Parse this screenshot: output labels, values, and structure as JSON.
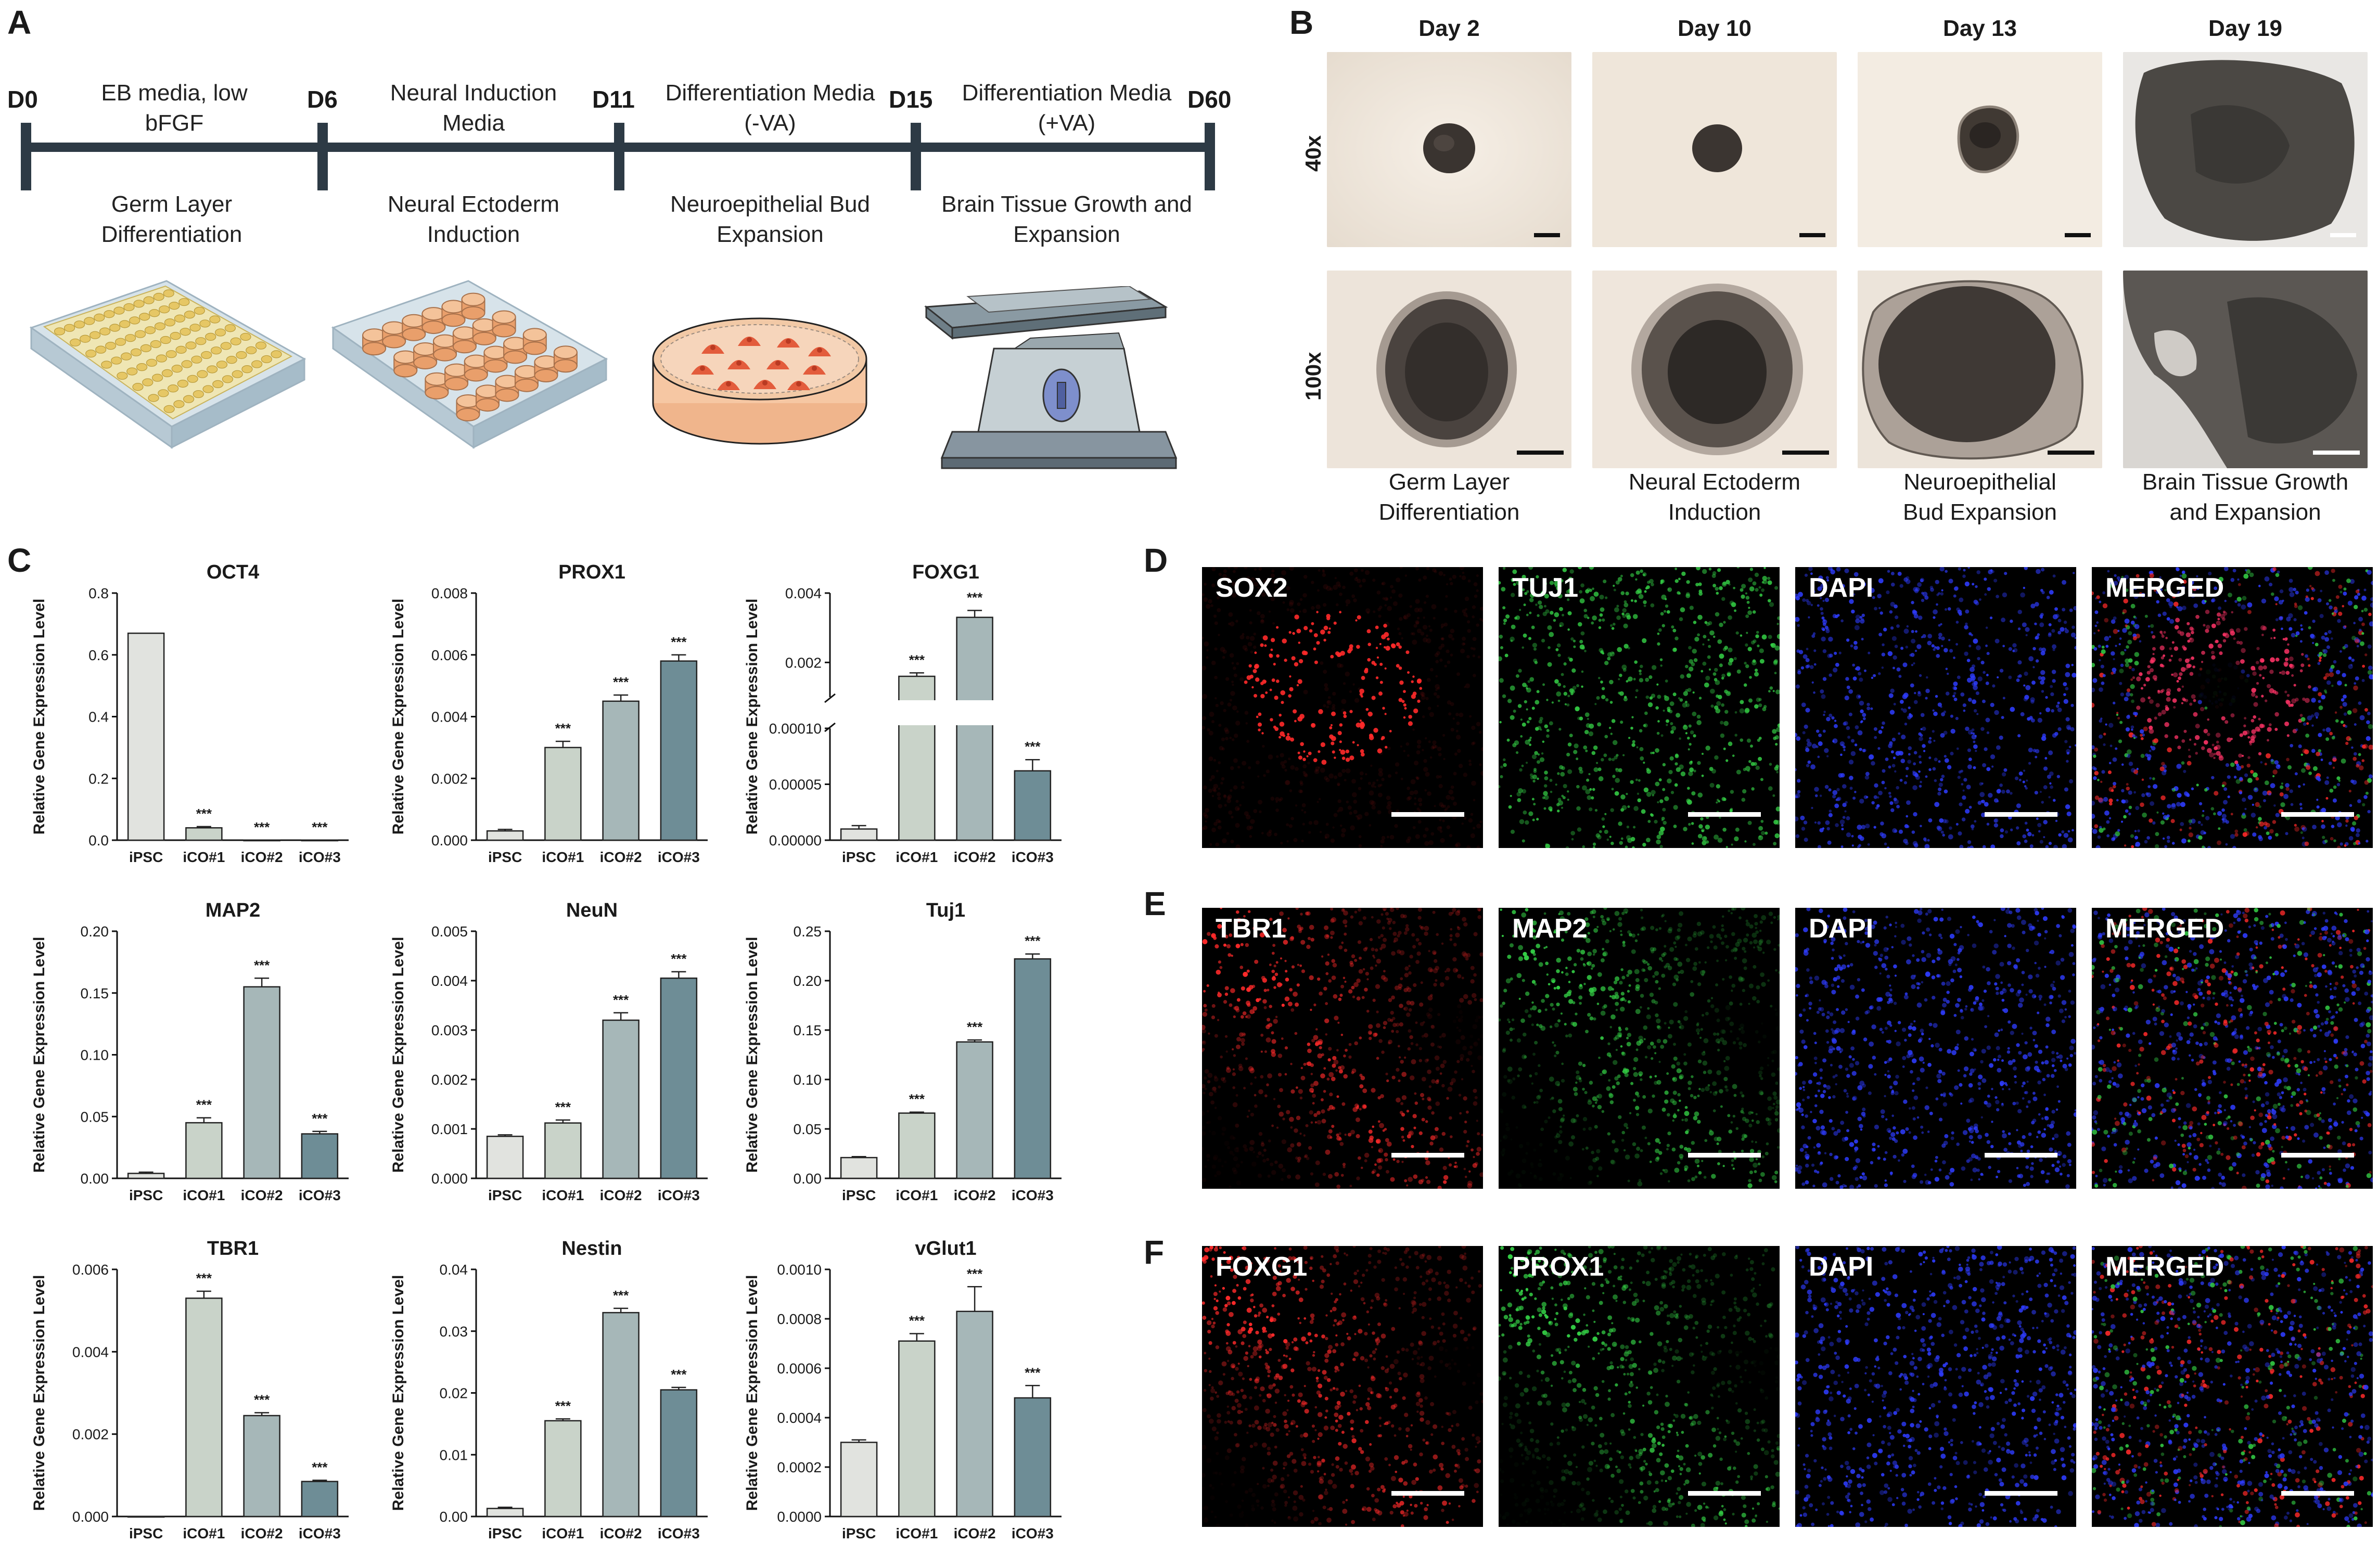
{
  "panels": {
    "a": "A",
    "b": "B",
    "c": "C",
    "d": "D",
    "e": "E",
    "f": "F"
  },
  "timeline": {
    "days": [
      "D0",
      "D6",
      "D11",
      "D15",
      "D60"
    ],
    "media": [
      "EB media, low\nbFGF",
      "Neural Induction\nMedia",
      "Differentiation Media\n(-VA)",
      "Differentiation Media\n(+VA)"
    ],
    "stages": [
      "Germ Layer\nDifferentiation",
      "Neural Ectoderm\nInduction",
      "Neuroepithelial Bud\nExpansion",
      "Brain Tissue Growth and\nExpansion"
    ]
  },
  "microscopy": {
    "days": [
      "Day 2",
      "Day 10",
      "Day 13",
      "Day 19"
    ],
    "magnifications": [
      "40x",
      "100x"
    ],
    "captions": [
      "Germ Layer\nDifferentiation",
      "Neural Ectoderm\nInduction",
      "Neuroepithelial\nBud Expansion",
      "Brain Tissue Growth\nand Expansion"
    ]
  },
  "chart_ylabel": "Relative Gene Expression Level",
  "chart_data": [
    {
      "type": "bar",
      "title": "OCT4",
      "categories": [
        "iPSC",
        "iCO#1",
        "iCO#2",
        "iCO#3"
      ],
      "values": [
        0.67,
        0.04,
        0.0,
        0.0
      ],
      "errors": [
        0,
        0.004,
        0,
        0
      ],
      "sig": [
        "",
        "***",
        "***",
        "***"
      ],
      "ylim": [
        0,
        0.8
      ],
      "yticks": [
        "0.0",
        "0.2",
        "0.4",
        "0.6",
        "0.8"
      ],
      "ylabel": "Relative Gene Expression Level"
    },
    {
      "type": "bar",
      "title": "PROX1",
      "categories": [
        "iPSC",
        "iCO#1",
        "iCO#2",
        "iCO#3"
      ],
      "values": [
        0.0003,
        0.003,
        0.0045,
        0.0058
      ],
      "errors": [
        5e-05,
        0.0002,
        0.0002,
        0.0002
      ],
      "sig": [
        "",
        "***",
        "***",
        "***"
      ],
      "ylim": [
        0,
        0.008
      ],
      "yticks": [
        "0.000",
        "0.002",
        "0.004",
        "0.006",
        "0.008"
      ],
      "ylabel": "Relative Gene Expression Level"
    },
    {
      "type": "bar",
      "title": "FOXG1",
      "categories": [
        "iPSC",
        "iCO#1",
        "iCO#2",
        "iCO#3"
      ],
      "values": [
        1e-05,
        0.0016,
        0.0033,
        6.2e-05
      ],
      "errors": [
        3e-06,
        0.0001,
        0.0002,
        1e-05
      ],
      "sig": [
        "",
        "***",
        "***",
        "***"
      ],
      "broken_axis": true,
      "ylim_low": [
        0,
        0.0001
      ],
      "ylim_high": [
        0.001,
        0.004
      ],
      "yticks_low": [
        "0.00000",
        "0.00005",
        "0.00010"
      ],
      "yticks_high": [
        "0.002",
        "0.004"
      ],
      "ylabel": "Relative Gene Expression Level"
    },
    {
      "type": "bar",
      "title": "MAP2",
      "categories": [
        "iPSC",
        "iCO#1",
        "iCO#2",
        "iCO#3"
      ],
      "values": [
        0.004,
        0.045,
        0.155,
        0.036
      ],
      "errors": [
        0.001,
        0.004,
        0.007,
        0.002
      ],
      "sig": [
        "",
        "***",
        "***",
        "***"
      ],
      "ylim": [
        0,
        0.2
      ],
      "yticks": [
        "0.00",
        "0.05",
        "0.10",
        "0.15",
        "0.20"
      ],
      "ylabel": "Relative Gene Expression Level"
    },
    {
      "type": "bar",
      "title": "NeuN",
      "categories": [
        "iPSC",
        "iCO#1",
        "iCO#2",
        "iCO#3"
      ],
      "values": [
        0.00085,
        0.00112,
        0.0032,
        0.00405
      ],
      "errors": [
        3e-05,
        6e-05,
        0.00015,
        0.00013
      ],
      "sig": [
        "",
        "***",
        "***",
        "***"
      ],
      "ylim": [
        0,
        0.005
      ],
      "yticks": [
        "0.000",
        "0.001",
        "0.002",
        "0.003",
        "0.004",
        "0.005"
      ],
      "ylabel": "Relative Gene Expression Level"
    },
    {
      "type": "bar",
      "title": "Tuj1",
      "categories": [
        "iPSC",
        "iCO#1",
        "iCO#2",
        "iCO#3"
      ],
      "values": [
        0.021,
        0.066,
        0.138,
        0.222
      ],
      "errors": [
        0.001,
        0.001,
        0.002,
        0.005
      ],
      "sig": [
        "",
        "***",
        "***",
        "***"
      ],
      "ylim": [
        0,
        0.25
      ],
      "yticks": [
        "0.00",
        "0.05",
        "0.10",
        "0.15",
        "0.20",
        "0.25"
      ],
      "ylabel": "Relative Gene Expression Level"
    },
    {
      "type": "bar",
      "title": "TBR1",
      "categories": [
        "iPSC",
        "iCO#1",
        "iCO#2",
        "iCO#3"
      ],
      "values": [
        0.0,
        0.0053,
        0.00245,
        0.00085
      ],
      "errors": [
        0,
        0.00017,
        7e-05,
        3e-05
      ],
      "sig": [
        "",
        "***",
        "***",
        "***"
      ],
      "ylim": [
        0,
        0.006
      ],
      "yticks": [
        "0.000",
        "0.002",
        "0.004",
        "0.006"
      ],
      "ylabel": "Relative Gene Expression Level"
    },
    {
      "type": "bar",
      "title": "Nestin",
      "categories": [
        "iPSC",
        "iCO#1",
        "iCO#2",
        "iCO#3"
      ],
      "values": [
        0.0013,
        0.0155,
        0.033,
        0.0205
      ],
      "errors": [
        0.0002,
        0.0003,
        0.0007,
        0.0004
      ],
      "sig": [
        "",
        "***",
        "***",
        "***"
      ],
      "ylim": [
        0,
        0.04
      ],
      "yticks": [
        "0.00",
        "0.01",
        "0.02",
        "0.03",
        "0.04"
      ],
      "ylabel": "Relative Gene Expression Level"
    },
    {
      "type": "bar",
      "title": "vGlut1",
      "categories": [
        "iPSC",
        "iCO#1",
        "iCO#2",
        "iCO#3"
      ],
      "values": [
        0.0003,
        0.00071,
        0.00083,
        0.00048
      ],
      "errors": [
        1e-05,
        3e-05,
        0.0001,
        5e-05
      ],
      "sig": [
        "",
        "***",
        "***",
        "***"
      ],
      "ylim": [
        0,
        0.001
      ],
      "yticks": [
        "0.0000",
        "0.0002",
        "0.0004",
        "0.0006",
        "0.0008",
        "0.0010"
      ],
      "ylabel": "Relative Gene Expression Level"
    }
  ],
  "bar_colors": [
    "#e1e3df",
    "#c9d3c9",
    "#a6b7b8",
    "#6e8d96"
  ],
  "immunofluorescence": {
    "d": [
      "SOX2",
      "TUJ1",
      "DAPI",
      "MERGED"
    ],
    "e": [
      "TBR1",
      "MAP2",
      "DAPI",
      "MERGED"
    ],
    "f": [
      "FOXG1",
      "PROX1",
      "DAPI",
      "MERGED"
    ]
  }
}
